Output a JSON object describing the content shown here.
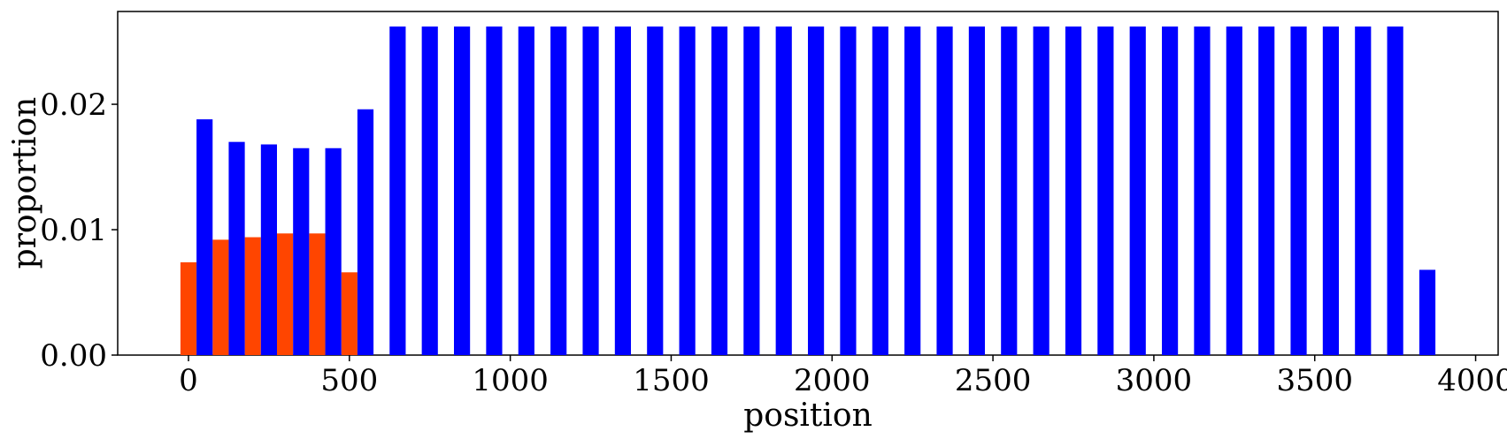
{
  "chart_data": {
    "type": "bar",
    "xlabel": "position",
    "ylabel": "proportion",
    "xlim": [
      -220,
      4070
    ],
    "ylim": [
      0,
      0.0274
    ],
    "x_ticks": [
      0,
      500,
      1000,
      1500,
      2000,
      2500,
      3000,
      3500,
      4000
    ],
    "x_tick_labels": [
      "0",
      "500",
      "1000",
      "1500",
      "2000",
      "2500",
      "3000",
      "3500",
      "4000"
    ],
    "y_ticks": [
      0,
      0.01,
      0.02
    ],
    "y_tick_labels": [
      "0.00",
      "0.01",
      "0.02"
    ],
    "grid": false,
    "bin_width": 100,
    "series": [
      {
        "color": "#ff4500",
        "x": [
          0,
          100,
          200,
          300,
          400,
          500
        ],
        "values": [
          0.0074,
          0.0092,
          0.0094,
          0.0097,
          0.0097,
          0.0066
        ]
      },
      {
        "color": "#0000ff",
        "x": [
          50,
          150,
          250,
          350,
          450,
          550,
          650,
          750,
          850,
          950,
          1050,
          1150,
          1250,
          1350,
          1450,
          1550,
          1650,
          1750,
          1850,
          1950,
          2050,
          2150,
          2250,
          2350,
          2450,
          2550,
          2650,
          2750,
          2850,
          2950,
          3050,
          3150,
          3250,
          3350,
          3450,
          3550,
          3650,
          3750,
          3850
        ],
        "values": [
          0.0188,
          0.017,
          0.0168,
          0.0165,
          0.0165,
          0.0196,
          0.0262,
          0.0262,
          0.0262,
          0.0262,
          0.0262,
          0.0262,
          0.0262,
          0.0262,
          0.0262,
          0.0262,
          0.0262,
          0.0262,
          0.0262,
          0.0262,
          0.0262,
          0.0262,
          0.0262,
          0.0262,
          0.0262,
          0.0262,
          0.0262,
          0.0262,
          0.0262,
          0.0262,
          0.0262,
          0.0262,
          0.0262,
          0.0262,
          0.0262,
          0.0262,
          0.0262,
          0.0262,
          0.0068
        ]
      }
    ]
  }
}
